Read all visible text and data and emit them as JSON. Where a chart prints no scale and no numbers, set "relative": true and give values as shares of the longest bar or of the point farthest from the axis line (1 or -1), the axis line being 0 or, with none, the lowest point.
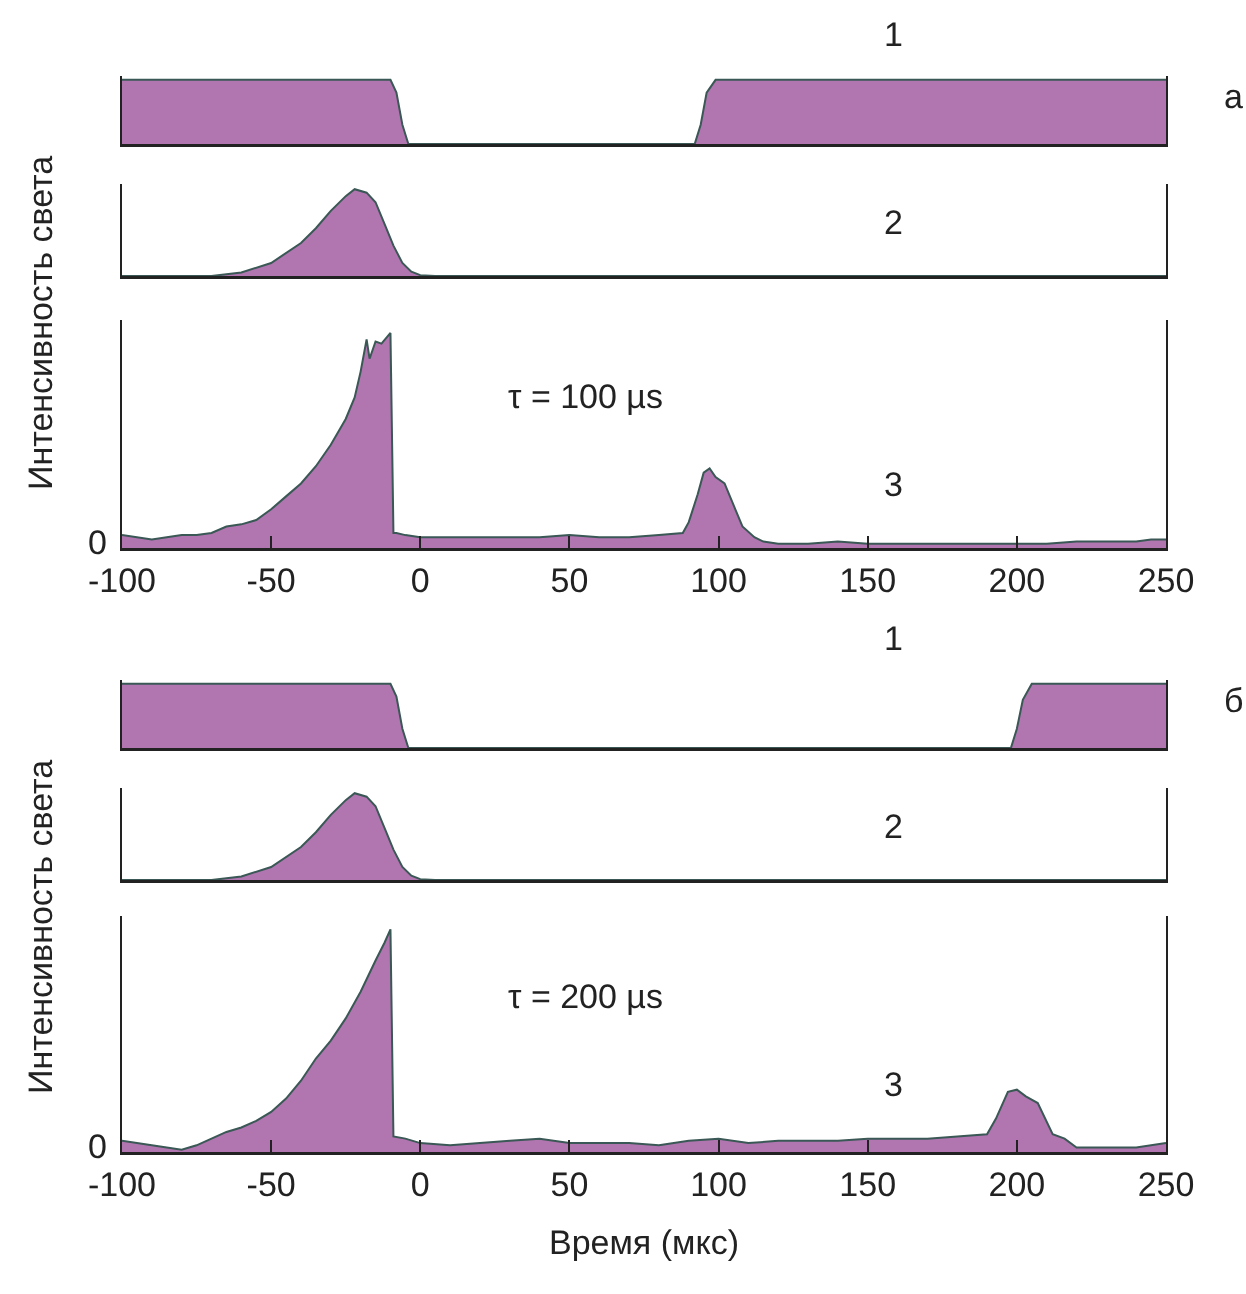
{
  "chart_data": [
    {
      "type": "area",
      "relative": true,
      "xlim": [
        -100,
        250
      ],
      "xticks": [
        -100,
        -50,
        0,
        50,
        100,
        150,
        200,
        250
      ],
      "tick_labels": false,
      "annotations": [
        "1",
        "а"
      ],
      "x": [
        -100,
        -10,
        -8,
        -6,
        -4,
        92,
        94,
        96,
        99,
        250
      ],
      "series": [
        {
          "color": "#b175b0",
          "values": [
            1,
            1,
            0.8,
            0.3,
            0,
            0,
            0.3,
            0.8,
            1,
            1
          ]
        }
      ]
    },
    {
      "type": "area",
      "relative": true,
      "xlim": [
        -100,
        250
      ],
      "xticks": [
        -100,
        -50,
        0,
        50,
        100,
        150,
        200,
        250
      ],
      "tick_labels": false,
      "annotations": [
        "2"
      ],
      "ylabel": "Интенсивность света",
      "x": [
        -100,
        -70,
        -60,
        -50,
        -40,
        -35,
        -30,
        -25,
        -22,
        -18,
        -15,
        -12,
        -9,
        -6,
        -3,
        0,
        5,
        250
      ],
      "series": [
        {
          "color": "#b175b0",
          "values": [
            0,
            0,
            0.04,
            0.15,
            0.38,
            0.55,
            0.75,
            0.92,
            1,
            0.96,
            0.85,
            0.6,
            0.35,
            0.15,
            0.05,
            0.01,
            0,
            0
          ]
        }
      ]
    },
    {
      "type": "area",
      "relative": true,
      "xlim": [
        -100,
        250
      ],
      "xticks": [
        -100,
        -50,
        0,
        50,
        100,
        150,
        200,
        250
      ],
      "tick_labels": "x",
      "annotations": [
        "τ = 100 µs",
        "3",
        "0"
      ],
      "x": [
        -100,
        -95,
        -90,
        -85,
        -80,
        -75,
        -70,
        -65,
        -60,
        -55,
        -50,
        -45,
        -40,
        -35,
        -30,
        -25,
        -22,
        -20,
        -18,
        -17,
        -15,
        -13,
        -10,
        -9,
        -8,
        -5,
        0,
        10,
        20,
        30,
        40,
        50,
        60,
        70,
        80,
        88,
        90,
        93,
        95,
        97,
        99,
        102,
        105,
        108,
        112,
        115,
        120,
        130,
        140,
        150,
        160,
        170,
        180,
        190,
        200,
        210,
        220,
        230,
        240,
        245,
        250
      ],
      "series": [
        {
          "color": "#b175b0",
          "values": [
            0.06,
            0.05,
            0.04,
            0.05,
            0.06,
            0.06,
            0.07,
            0.1,
            0.11,
            0.13,
            0.18,
            0.24,
            0.3,
            0.38,
            0.48,
            0.6,
            0.7,
            0.82,
            0.97,
            0.88,
            0.96,
            0.95,
            1,
            0.07,
            0.07,
            0.06,
            0.05,
            0.05,
            0.05,
            0.05,
            0.05,
            0.06,
            0.05,
            0.05,
            0.06,
            0.07,
            0.12,
            0.25,
            0.35,
            0.37,
            0.33,
            0.3,
            0.2,
            0.1,
            0.05,
            0.03,
            0.02,
            0.02,
            0.03,
            0.02,
            0.02,
            0.02,
            0.02,
            0.02,
            0.02,
            0.02,
            0.03,
            0.03,
            0.03,
            0.04,
            0.04
          ]
        }
      ]
    },
    {
      "type": "area",
      "relative": true,
      "xlim": [
        -100,
        250
      ],
      "xticks": [
        -100,
        -50,
        0,
        50,
        100,
        150,
        200,
        250
      ],
      "tick_labels": false,
      "annotations": [
        "1",
        "б"
      ],
      "x": [
        -100,
        -10,
        -8,
        -6,
        -4,
        198,
        200,
        202,
        205,
        250
      ],
      "series": [
        {
          "color": "#b175b0",
          "values": [
            1,
            1,
            0.8,
            0.3,
            0,
            0,
            0.3,
            0.75,
            1,
            1
          ]
        }
      ]
    },
    {
      "type": "area",
      "relative": true,
      "xlim": [
        -100,
        250
      ],
      "xticks": [
        -100,
        -50,
        0,
        50,
        100,
        150,
        200,
        250
      ],
      "tick_labels": false,
      "annotations": [
        "2"
      ],
      "ylabel": "Интенсивность света",
      "x": [
        -100,
        -70,
        -60,
        -50,
        -40,
        -35,
        -30,
        -25,
        -22,
        -18,
        -15,
        -12,
        -9,
        -6,
        -3,
        0,
        5,
        250
      ],
      "series": [
        {
          "color": "#b175b0",
          "values": [
            0,
            0,
            0.04,
            0.15,
            0.38,
            0.55,
            0.75,
            0.92,
            1,
            0.96,
            0.85,
            0.6,
            0.35,
            0.15,
            0.05,
            0.01,
            0,
            0
          ]
        }
      ]
    },
    {
      "type": "area",
      "relative": true,
      "xlim": [
        -100,
        250
      ],
      "xticks": [
        -100,
        -50,
        0,
        50,
        100,
        150,
        200,
        250
      ],
      "tick_labels": "x",
      "annotations": [
        "τ = 200 µs",
        "3",
        "0"
      ],
      "xlabel": "Время (мкс)",
      "x": [
        -100,
        -90,
        -80,
        -75,
        -70,
        -65,
        -60,
        -55,
        -50,
        -45,
        -40,
        -35,
        -30,
        -25,
        -20,
        -15,
        -12,
        -10,
        -9,
        -5,
        0,
        10,
        20,
        30,
        40,
        50,
        60,
        70,
        80,
        90,
        100,
        110,
        120,
        130,
        140,
        150,
        160,
        170,
        180,
        190,
        193,
        197,
        200,
        203,
        207,
        212,
        216,
        220,
        230,
        240,
        250
      ],
      "series": [
        {
          "color": "#b175b0",
          "values": [
            0.05,
            0.03,
            0.01,
            0.03,
            0.06,
            0.09,
            0.11,
            0.14,
            0.18,
            0.24,
            0.32,
            0.42,
            0.5,
            0.6,
            0.72,
            0.86,
            0.94,
            1,
            0.07,
            0.06,
            0.04,
            0.03,
            0.04,
            0.05,
            0.06,
            0.04,
            0.04,
            0.04,
            0.03,
            0.05,
            0.06,
            0.04,
            0.05,
            0.05,
            0.05,
            0.06,
            0.06,
            0.06,
            0.07,
            0.08,
            0.15,
            0.27,
            0.28,
            0.25,
            0.22,
            0.08,
            0.06,
            0.02,
            0.02,
            0.02,
            0.04
          ]
        }
      ]
    }
  ]
}
